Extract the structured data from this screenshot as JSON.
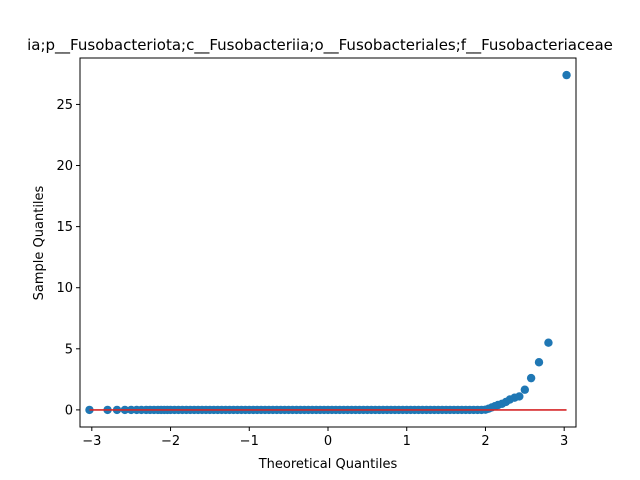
{
  "chart_data": {
    "type": "scatter",
    "title": "ia;p__Fusobacteriota;c__Fusobacteriia;o__Fusobacteriales;f__Fusobacteriaceae",
    "xlabel": "Theoretical Quantiles",
    "ylabel": "Sample Quantiles",
    "xlim": [
      -3.15,
      3.15
    ],
    "ylim": [
      -1.4,
      28.8
    ],
    "xticks": [
      -3,
      -2,
      -1,
      0,
      1,
      2,
      3
    ],
    "yticks": [
      0,
      5,
      10,
      15,
      20,
      25
    ],
    "xtick_labels": [
      "−3",
      "−2",
      "−1",
      "0",
      "1",
      "2",
      "3"
    ],
    "ytick_labels": [
      "0",
      "5",
      "10",
      "15",
      "20",
      "25"
    ],
    "grid": false,
    "series": [
      {
        "kind": "points",
        "color": "#1f77b4",
        "x": [
          -3.03,
          -2.8,
          -2.68,
          -2.58,
          -2.5,
          -2.43,
          -2.37,
          -2.31,
          -2.26,
          -2.21,
          -2.16,
          -2.12,
          -2.08,
          -2.04,
          -2.0,
          -1.95,
          -1.9,
          -1.85,
          -1.8,
          -1.75,
          -1.7,
          -1.65,
          -1.6,
          -1.55,
          -1.5,
          -1.45,
          -1.4,
          -1.35,
          -1.3,
          -1.25,
          -1.2,
          -1.15,
          -1.1,
          -1.05,
          -1.0,
          -0.95,
          -0.9,
          -0.85,
          -0.8,
          -0.75,
          -0.7,
          -0.65,
          -0.6,
          -0.55,
          -0.5,
          -0.45,
          -0.4,
          -0.35,
          -0.3,
          -0.25,
          -0.2,
          -0.15,
          -0.1,
          -0.05,
          0.0,
          0.05,
          0.1,
          0.15,
          0.2,
          0.25,
          0.3,
          0.35,
          0.4,
          0.45,
          0.5,
          0.55,
          0.6,
          0.65,
          0.7,
          0.75,
          0.8,
          0.85,
          0.9,
          0.95,
          1.0,
          1.05,
          1.1,
          1.15,
          1.2,
          1.25,
          1.3,
          1.35,
          1.4,
          1.45,
          1.5,
          1.55,
          1.6,
          1.65,
          1.7,
          1.75,
          1.8,
          1.85,
          1.9,
          1.95,
          2.0,
          2.04,
          2.08,
          2.12,
          2.16,
          2.21,
          2.26,
          2.31,
          2.37,
          2.43,
          2.5,
          2.58,
          2.68,
          2.8,
          3.03
        ],
        "y": [
          0,
          0,
          0,
          0,
          0,
          0,
          0,
          0,
          0,
          0,
          0,
          0,
          0,
          0,
          0,
          0,
          0,
          0,
          0,
          0,
          0,
          0,
          0,
          0,
          0,
          0,
          0,
          0,
          0,
          0,
          0,
          0,
          0,
          0,
          0,
          0,
          0,
          0,
          0,
          0,
          0,
          0,
          0,
          0,
          0,
          0,
          0,
          0,
          0,
          0,
          0,
          0,
          0,
          0,
          0,
          0,
          0,
          0,
          0,
          0,
          0,
          0,
          0,
          0,
          0,
          0,
          0,
          0,
          0,
          0,
          0,
          0,
          0,
          0,
          0,
          0,
          0,
          0,
          0,
          0,
          0,
          0,
          0,
          0,
          0,
          0,
          0,
          0,
          0,
          0,
          0,
          0,
          0,
          0,
          0.02,
          0.1,
          0.2,
          0.3,
          0.4,
          0.5,
          0.65,
          0.85,
          1.0,
          1.1,
          1.65,
          2.6,
          3.9,
          5.5,
          27.4
        ]
      },
      {
        "kind": "line",
        "color": "#d62728",
        "x": [
          -3.03,
          3.03
        ],
        "y": [
          0,
          0
        ]
      }
    ]
  }
}
